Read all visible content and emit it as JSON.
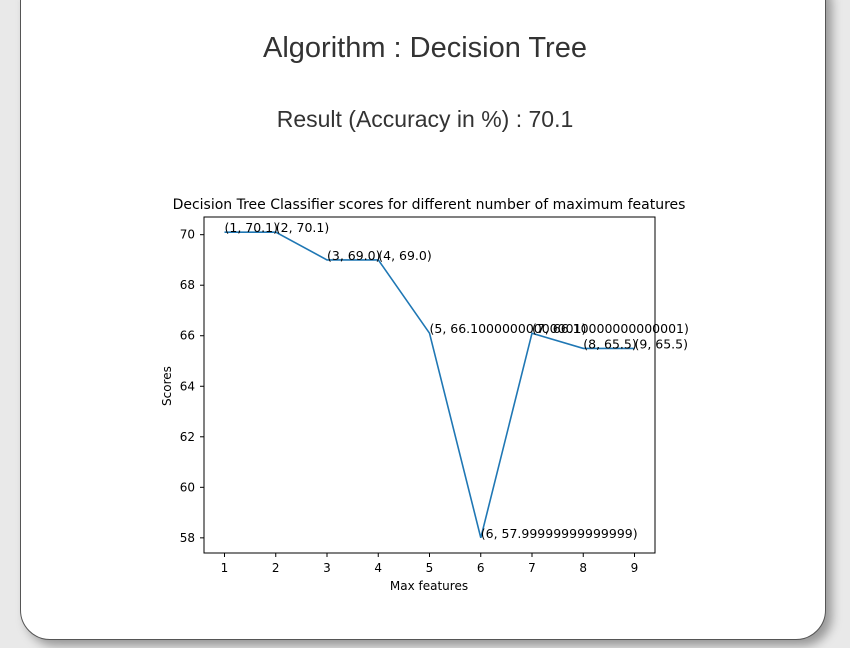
{
  "page": {
    "algorithm_heading": "Algorithm : Decision Tree",
    "result_heading": "Result (Accuracy in %) : 70.1"
  },
  "chart_data": {
    "type": "line",
    "title": "Decision Tree Classifier scores for different number of maximum features",
    "xlabel": "Max features",
    "ylabel": "Scores",
    "x": [
      1,
      2,
      3,
      4,
      5,
      6,
      7,
      8,
      9
    ],
    "y": [
      70.1,
      70.1,
      69.0,
      69.0,
      66.10000000000001,
      57.99999999999999,
      66.10000000000001,
      65.5,
      65.5
    ],
    "point_labels": [
      "(1, 70.1)",
      "(2, 70.1)",
      "(3, 69.0)",
      "(4, 69.0)",
      "(5, 66.10000000000001)",
      "(6, 57.99999999999999)",
      "(7, 66.10000000000001)",
      "(8, 65.5)",
      "(9, 65.5)"
    ],
    "xticks": [
      1,
      2,
      3,
      4,
      5,
      6,
      7,
      8,
      9
    ],
    "yticks": [
      58,
      60,
      62,
      64,
      66,
      68,
      70
    ],
    "xlim": [
      0.6,
      9.4
    ],
    "ylim": [
      57.4,
      70.7
    ],
    "line_color": "#1f77b4",
    "grid": false
  }
}
